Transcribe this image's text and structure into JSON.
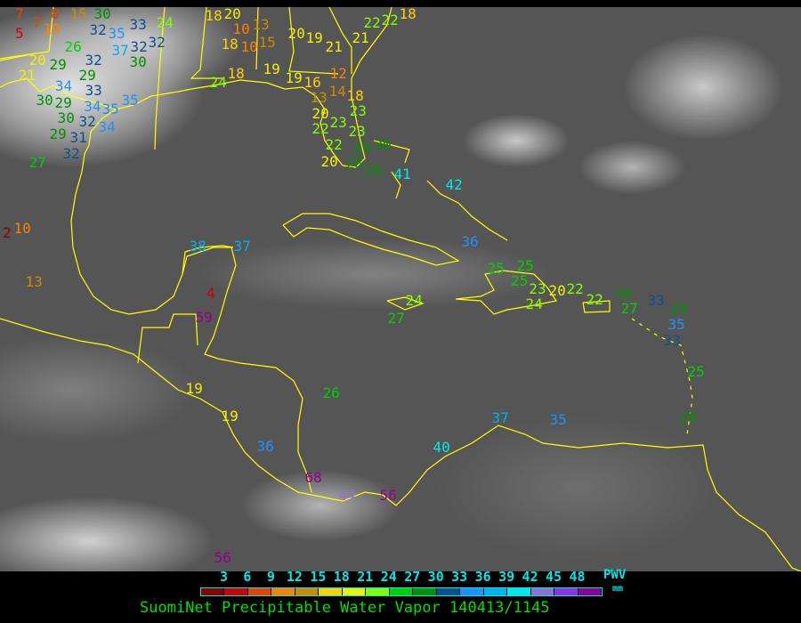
{
  "legend": {
    "ticks": [
      "3",
      "6",
      "9",
      "12",
      "15",
      "18",
      "21",
      "24",
      "27",
      "30",
      "33",
      "36",
      "39",
      "42",
      "45",
      "48"
    ],
    "colors": [
      "#8b0000",
      "#d00000",
      "#f04000",
      "#ff8000",
      "#d08800",
      "#ffd000",
      "#f0f000",
      "#80ff00",
      "#00d000",
      "#009000",
      "#104f8f",
      "#2090ff",
      "#00b0f0",
      "#00e8e8",
      "#9070d0",
      "#9030e0",
      "#900090"
    ],
    "unit_title": "PWV",
    "unit": "mm"
  },
  "caption": "SuomiNet Precipitable Water Vapor 140413/1145",
  "coastline_color": "#ffff00",
  "stations": [
    "7",
    "7",
    "5",
    "8",
    "10",
    "15",
    "30",
    "32",
    "33",
    "24",
    "35",
    "37",
    "32",
    "32",
    "26",
    "20",
    "29",
    "32",
    "30",
    "21",
    "29",
    "33",
    "30",
    "29",
    "34",
    "34",
    "35",
    "35",
    "30",
    "32",
    "31",
    "34",
    "29",
    "32",
    "27",
    "18",
    "20",
    "13",
    "10",
    "18",
    "10",
    "15",
    "20",
    "19",
    "21",
    "21",
    "22",
    "22",
    "18",
    "24",
    "18",
    "19",
    "19",
    "16",
    "13",
    "14",
    "12",
    "20",
    "18",
    "23",
    "22",
    "23",
    "23",
    "29",
    "30",
    "22",
    "20",
    "28",
    "29",
    "41",
    "42",
    "2",
    "10",
    "13",
    "38",
    "37",
    "4",
    "59",
    "24",
    "27",
    "36",
    "19",
    "26",
    "19",
    "36",
    "68",
    "40",
    "44",
    "56",
    "37",
    "35",
    "56",
    "25",
    "25",
    "25",
    "23",
    "24",
    "20",
    "22",
    "22",
    "30",
    "27",
    "33",
    "29",
    "35",
    "33",
    "25",
    "28"
  ]
}
